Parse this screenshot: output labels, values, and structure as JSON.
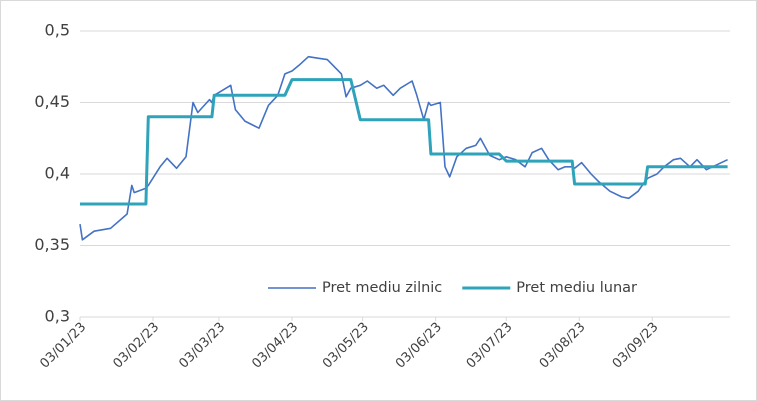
{
  "chart_data": {
    "type": "line",
    "x": [
      "2023-01-03",
      "2023-01-04",
      "2023-01-09",
      "2023-01-16",
      "2023-01-23",
      "2023-01-25",
      "2023-01-26",
      "2023-01-31",
      "2023-02-01",
      "2023-02-06",
      "2023-02-09",
      "2023-02-13",
      "2023-02-17",
      "2023-02-20",
      "2023-02-22",
      "2023-02-27",
      "2023-02-28",
      "2023-03-01",
      "2023-03-06",
      "2023-03-08",
      "2023-03-10",
      "2023-03-14",
      "2023-03-20",
      "2023-03-24",
      "2023-03-28",
      "2023-03-31",
      "2023-04-03",
      "2023-04-06",
      "2023-04-10",
      "2023-04-14",
      "2023-04-18",
      "2023-04-24",
      "2023-04-26",
      "2023-04-28",
      "2023-05-02",
      "2023-05-05",
      "2023-05-09",
      "2023-05-12",
      "2023-05-16",
      "2023-05-19",
      "2023-05-24",
      "2023-05-26",
      "2023-05-29",
      "2023-05-31",
      "2023-06-01",
      "2023-06-05",
      "2023-06-07",
      "2023-06-09",
      "2023-06-12",
      "2023-06-16",
      "2023-06-20",
      "2023-06-22",
      "2023-06-26",
      "2023-06-30",
      "2023-07-03",
      "2023-07-07",
      "2023-07-11",
      "2023-07-14",
      "2023-07-18",
      "2023-07-21",
      "2023-07-25",
      "2023-07-28",
      "2023-07-31",
      "2023-08-01",
      "2023-08-04",
      "2023-08-08",
      "2023-08-11",
      "2023-08-16",
      "2023-08-21",
      "2023-08-24",
      "2023-08-28",
      "2023-08-31",
      "2023-09-01",
      "2023-09-05",
      "2023-09-08",
      "2023-09-12",
      "2023-09-15",
      "2023-09-19",
      "2023-09-22",
      "2023-09-26",
      "2023-10-05"
    ],
    "series": [
      {
        "name": "Pret mediu zilnic",
        "color": "#4472c4",
        "width": 1.6,
        "values": [
          0.365,
          0.354,
          0.36,
          0.362,
          0.372,
          0.392,
          0.387,
          0.39,
          0.392,
          0.405,
          0.411,
          0.404,
          0.412,
          0.45,
          0.443,
          0.452,
          0.45,
          0.455,
          0.46,
          0.462,
          0.445,
          0.437,
          0.432,
          0.448,
          0.455,
          0.47,
          0.472,
          0.476,
          0.482,
          0.481,
          0.48,
          0.47,
          0.454,
          0.46,
          0.462,
          0.465,
          0.46,
          0.462,
          0.455,
          0.46,
          0.465,
          0.455,
          0.438,
          0.45,
          0.448,
          0.45,
          0.405,
          0.398,
          0.412,
          0.418,
          0.42,
          0.425,
          0.413,
          0.41,
          0.412,
          0.41,
          0.405,
          0.415,
          0.418,
          0.41,
          0.403,
          0.405,
          0.405,
          0.404,
          0.408,
          0.4,
          0.395,
          0.388,
          0.384,
          0.383,
          0.388,
          0.395,
          0.397,
          0.4,
          0.405,
          0.41,
          0.411,
          0.405,
          0.41,
          0.403,
          0.41
        ]
      },
      {
        "name": "Pret mediu lunar",
        "color": "#2ea3b9",
        "width": 3,
        "values": [
          0.379,
          0.379,
          0.379,
          0.379,
          0.379,
          0.379,
          0.379,
          0.379,
          0.44,
          0.44,
          0.44,
          0.44,
          0.44,
          0.44,
          0.44,
          0.44,
          0.44,
          0.455,
          0.455,
          0.455,
          0.455,
          0.455,
          0.455,
          0.455,
          0.455,
          0.455,
          0.466,
          0.466,
          0.466,
          0.466,
          0.466,
          0.466,
          0.466,
          0.466,
          0.438,
          0.438,
          0.438,
          0.438,
          0.438,
          0.438,
          0.438,
          0.438,
          0.438,
          0.438,
          0.414,
          0.414,
          0.414,
          0.414,
          0.414,
          0.414,
          0.414,
          0.414,
          0.414,
          0.414,
          0.409,
          0.409,
          0.409,
          0.409,
          0.409,
          0.409,
          0.409,
          0.409,
          0.409,
          0.393,
          0.393,
          0.393,
          0.393,
          0.393,
          0.393,
          0.393,
          0.393,
          0.393,
          0.405,
          0.405,
          0.405,
          0.405,
          0.405,
          0.405,
          0.405,
          0.405,
          0.405
        ]
      }
    ],
    "xlim": [
      "2023-01-03",
      "2023-10-06"
    ],
    "xticks": [
      {
        "value": "2023-01-03",
        "label": "03/01/23"
      },
      {
        "value": "2023-02-03",
        "label": "03/02/23"
      },
      {
        "value": "2023-03-03",
        "label": "03/03/23"
      },
      {
        "value": "2023-04-03",
        "label": "03/04/23"
      },
      {
        "value": "2023-05-03",
        "label": "03/05/23"
      },
      {
        "value": "2023-06-03",
        "label": "03/06/23"
      },
      {
        "value": "2023-07-03",
        "label": "03/07/23"
      },
      {
        "value": "2023-08-03",
        "label": "03/08/23"
      },
      {
        "value": "2023-09-03",
        "label": "03/09/23"
      }
    ],
    "ylim": [
      0.3,
      0.5
    ],
    "yticks": [
      {
        "value": 0.3,
        "label": "0,3"
      },
      {
        "value": 0.35,
        "label": "0,35"
      },
      {
        "value": 0.4,
        "label": "0,4"
      },
      {
        "value": 0.45,
        "label": "0,45"
      },
      {
        "value": 0.5,
        "label": "0,5"
      }
    ],
    "grid": true,
    "legend": "lower-right"
  }
}
